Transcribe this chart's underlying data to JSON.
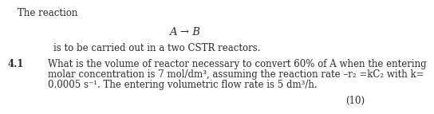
{
  "background_color": "#ffffff",
  "title_line": "The reaction",
  "reaction_line": "A → B",
  "subtitle_line": "is to be carried out in a two CSTR reactors.",
  "section_number": "4.1",
  "body_line1": "What is the volume of reactor necessary to convert 60% of A when the entering",
  "body_line2": "molar concentration is 7 mol/dm³, assuming the reaction rate –r₂ =kC₂ with k=",
  "body_line3": "0.0005 s⁻¹. The entering volumetric flow rate is 5 dm³/h.",
  "marks": "(10)",
  "font_size_main": 8.5,
  "font_size_reaction": 9.5,
  "text_color": "#2b2b2b"
}
